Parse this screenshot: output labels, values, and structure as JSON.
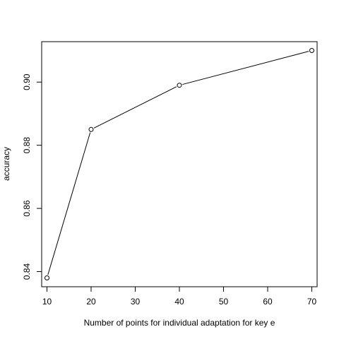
{
  "chart_data": {
    "type": "line",
    "title": "",
    "xlabel": "Number of points for individual adaptation for key e",
    "ylabel": "accuracy",
    "xlim": [
      8.8,
      71.2
    ],
    "ylim": [
      0.8352,
      0.9128
    ],
    "x_ticks": [
      10,
      20,
      30,
      40,
      50,
      60,
      70
    ],
    "x_tick_labels": [
      "10",
      "20",
      "30",
      "40",
      "50",
      "60",
      "70"
    ],
    "y_ticks": [
      0.84,
      0.86,
      0.88,
      0.9
    ],
    "y_tick_labels": [
      "0.84",
      "0.86",
      "0.88",
      "0.90"
    ],
    "grid": false,
    "marker": "open-circle",
    "line_color": "#000000",
    "series": [
      {
        "x": [
          10,
          20,
          40,
          70
        ],
        "values": [
          0.838,
          0.885,
          0.899,
          0.91
        ]
      }
    ]
  }
}
